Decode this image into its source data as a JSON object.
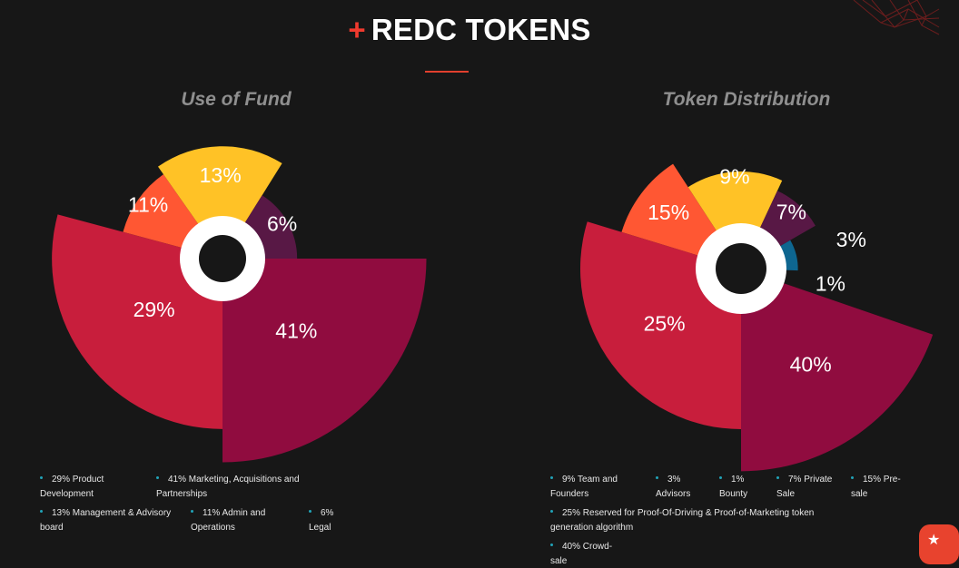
{
  "header": {
    "plus": "+",
    "title": "REDC TOKENS"
  },
  "floating_button": {
    "icon": "star-icon"
  },
  "colors": {
    "accent": "#f03a2e",
    "legend_dot": "#21a3b8",
    "background": "#171717"
  },
  "chart_data": [
    {
      "type": "pie",
      "variant": "polar-area",
      "title": "Use of Fund",
      "slices": [
        {
          "label": "29%",
          "value": 29,
          "legend": "29% Product Development",
          "color": "#c81e3c"
        },
        {
          "label": "11%",
          "value": 11,
          "legend": "11% Admin and Operations",
          "color": "#ff5733"
        },
        {
          "label": "13%",
          "value": 13,
          "legend": "13% Management & Advisory board",
          "color": "#ffc226"
        },
        {
          "label": "6%",
          "value": 6,
          "legend": "6% Legal",
          "color": "#581845"
        },
        {
          "label": "41%",
          "value": 41,
          "legend": "41% Marketing, Acquisitions and Partnerships",
          "color": "#900c3f"
        }
      ],
      "legend": [
        "29% Product Development",
        "41% Marketing, Acquisitions and Partnerships",
        "13% Management & Advisory board",
        "11% Admin and Operations",
        "6% Legal"
      ]
    },
    {
      "type": "pie",
      "variant": "polar-area",
      "title": "Token Distribution",
      "slices": [
        {
          "label": "25%",
          "value": 25,
          "legend": "25% Reserved for Proof-Of-Driving & Proof-of-Marketing token generation algorithm",
          "color": "#c81e3c"
        },
        {
          "label": "15%",
          "value": 15,
          "legend": "15% Pre-sale",
          "color": "#ff5733"
        },
        {
          "label": "9%",
          "value": 9,
          "legend": "9% Team and Founders",
          "color": "#ffc226"
        },
        {
          "label": "7%",
          "value": 7,
          "legend": "7% Private Sale",
          "color": "#581845"
        },
        {
          "label": "3%",
          "value": 3,
          "legend": "3% Advisors",
          "color": "#0e6690"
        },
        {
          "label": "1%",
          "value": 1,
          "legend": "1% Bounty",
          "color": "#d5c93b"
        },
        {
          "label": "40%",
          "value": 40,
          "legend": "40% Crowd-sale",
          "color": "#900c3f"
        }
      ],
      "legend": [
        "9% Team and Founders",
        "3% Advisors",
        "1% Bounty",
        "7% Private Sale",
        "15% Pre-sale",
        "25% Reserved for Proof-Of-Driving & Proof-of-Marketing token generation algorithm",
        "40% Crowd-sale"
      ]
    }
  ]
}
